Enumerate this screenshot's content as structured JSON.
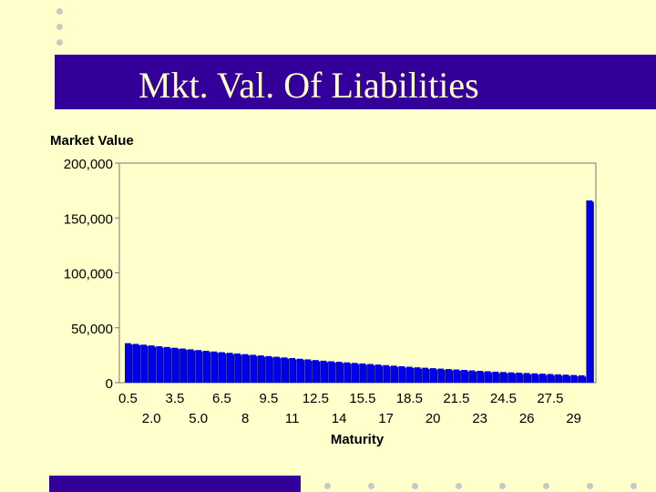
{
  "slide": {
    "title": "Mkt. Val. Of Liabilities",
    "colors": {
      "background": "#ffffcc",
      "accent": "#330099",
      "bar": "#0000ee",
      "bar_shadow": "#000080"
    }
  },
  "chart_data": {
    "type": "bar",
    "title": "",
    "ylabel": "Market Value",
    "xlabel": "Maturity",
    "ylim": [
      0,
      200000
    ],
    "yticks": [
      0,
      50000,
      100000,
      150000,
      200000
    ],
    "ytick_labels": [
      "0",
      "50,000",
      "100,000",
      "150,000",
      "200,000"
    ],
    "categories": [
      "0.5",
      "1.0",
      "1.5",
      "2.0",
      "2.5",
      "3.0",
      "3.5",
      "4.0",
      "4.5",
      "5.0",
      "5.5",
      "6.0",
      "6.5",
      "7.0",
      "7.5",
      "8.0",
      "8.5",
      "9.0",
      "9.5",
      "10.0",
      "10.5",
      "11.0",
      "11.5",
      "12.0",
      "12.5",
      "13.0",
      "13.5",
      "14.0",
      "14.5",
      "15.0",
      "15.5",
      "16.0",
      "16.5",
      "17.0",
      "17.5",
      "18.0",
      "18.5",
      "19.0",
      "19.5",
      "20.0",
      "20.5",
      "21.0",
      "21.5",
      "22.0",
      "22.5",
      "23.0",
      "23.5",
      "24.0",
      "24.5",
      "25.0",
      "25.5",
      "26.0",
      "26.5",
      "27.0",
      "27.5",
      "28.0",
      "28.5",
      "29.0",
      "29.5",
      "30.0"
    ],
    "xtick_labels_top": [
      "0.5",
      "3.5",
      "6.5",
      "9.5",
      "12.5",
      "15.5",
      "18.5",
      "21.5",
      "24.5",
      "27.5"
    ],
    "xtick_labels_bottom": [
      "2.0",
      "5.0",
      "8",
      "11",
      "14",
      "17",
      "20",
      "23",
      "26",
      "29"
    ],
    "values": [
      36000,
      35300,
      34600,
      33900,
      33200,
      32500,
      31800,
      31100,
      30400,
      29700,
      29000,
      28400,
      27800,
      27200,
      26600,
      26000,
      25400,
      24800,
      24200,
      23600,
      23000,
      22400,
      21800,
      21200,
      20600,
      20000,
      19500,
      19000,
      18500,
      18000,
      17500,
      17000,
      16500,
      16000,
      15500,
      15000,
      14500,
      14000,
      13600,
      13200,
      12800,
      12400,
      12000,
      11600,
      11200,
      10800,
      10400,
      10000,
      9700,
      9400,
      9100,
      8800,
      8500,
      8200,
      7900,
      7600,
      7300,
      7000,
      6700,
      166000
    ],
    "grid": false,
    "legend": "none"
  }
}
